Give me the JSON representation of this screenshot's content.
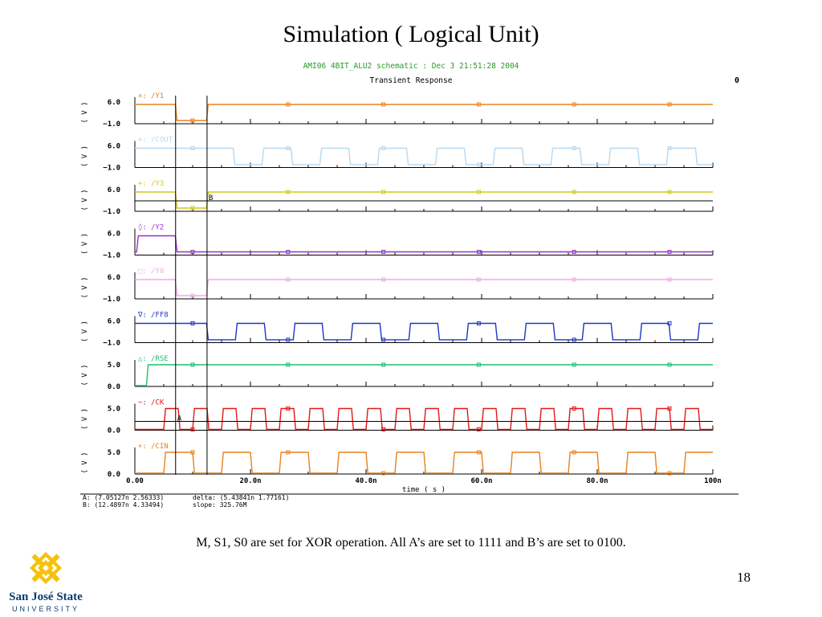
{
  "slide": {
    "title": "Simulation ( Logical Unit)",
    "caption": "M, S1, S0  are set for XOR operation. All A’s are set to 1111 and B’s are set to 0100.",
    "page_number": "18"
  },
  "logo": {
    "line1": "San José State",
    "line2": "UNIVERSITY",
    "color": "#f4c20d",
    "text_color": "#0b3a6e"
  },
  "chart_data": {
    "type": "line",
    "title": "AMI06 4BIT_ALU2 schematic : Dec  3 21:51:28 2004",
    "subtitle": "Transient Response",
    "corner_mark": "0",
    "xlabel": "time ( s )",
    "xlim": [
      0,
      100
    ],
    "x_ticks": [
      "0.00",
      "20.0n",
      "40.0n",
      "60.0n",
      "80.0n",
      "100n"
    ],
    "cursors": [
      {
        "label": "A",
        "x": 7.05
      },
      {
        "label": "B",
        "x": 12.49
      }
    ],
    "readouts": {
      "a": "A: (7.05127n 2.56333)",
      "b": "B: (12.4897n 4.33494)",
      "delta": "delta: (5.43841n 1.77161)",
      "slope": "slope: 325.76M"
    },
    "series": [
      {
        "name": "/Y1",
        "marker_char": "×",
        "color": "#e8821e",
        "unit": "( V )",
        "ymax_label": "6.0",
        "ymin_label": "−1.0",
        "kind": "pulse",
        "v0": 5.2,
        "segments": [
          [
            7.0,
            12.4,
            -0.2
          ]
        ]
      },
      {
        "name": "/COUT",
        "marker_char": "+",
        "color": "#b8d8f0",
        "unit": "( V )",
        "ymax_label": "6.0",
        "ymin_label": "−1.0",
        "kind": "clock",
        "low": -0.3,
        "high": 5.2,
        "period": 10,
        "start": 17.0,
        "duty": 0.5,
        "initial": 5.2
      },
      {
        "name": "/Y3",
        "marker_char": "+",
        "color": "#d4c81a",
        "unit": "( V )",
        "ymax_label": "6.0",
        "ymin_label": "−1.0",
        "kind": "pulse",
        "v0": 5.2,
        "segments": [
          [
            7.0,
            12.4,
            -0.2
          ]
        ]
      },
      {
        "name": "/Y2",
        "marker_char": "◊",
        "color": "#9b2fd0",
        "unit": "( V )",
        "ymax_label": "6.0",
        "ymin_label": "−1.0",
        "kind": "pulse",
        "v0": -0.2,
        "segments": [
          [
            0.3,
            7.0,
            5.2
          ]
        ]
      },
      {
        "name": "/Y0",
        "marker_char": "□",
        "color": "#f0a8e8",
        "unit": "( V )",
        "ymax_label": "6.0",
        "ymin_label": "−1.0",
        "kind": "pulse",
        "v0": 5.2,
        "segments": [
          [
            7.0,
            12.4,
            -0.2
          ]
        ]
      },
      {
        "name": "/FF8",
        "marker_char": "∇",
        "color": "#1f36c8",
        "unit": "( V )",
        "ymax_label": "6.0",
        "ymin_label": "−1.0",
        "kind": "clock",
        "low": -0.3,
        "high": 5.2,
        "period": 10,
        "start": 12.4,
        "duty": 0.5,
        "initial": 5.2
      },
      {
        "name": "/RSE",
        "marker_char": "△",
        "color": "#1fbf6f",
        "unit": "( V )",
        "ymax_label": "5.0",
        "ymin_label": "0.0",
        "kind": "pulse",
        "v0": 0.0,
        "segments": [
          [
            2.0,
            100,
            5.0
          ]
        ]
      },
      {
        "name": "/CK",
        "marker_char": "−",
        "color": "#e01818",
        "unit": "( V )",
        "ymax_label": "5.0",
        "ymin_label": "0.0",
        "kind": "clock",
        "low": 0.0,
        "high": 5.0,
        "period": 5,
        "start": 5.0,
        "duty": 0.5,
        "initial": 0.0
      },
      {
        "name": "/CIN",
        "marker_char": "∗",
        "color": "#e8821e",
        "unit": "( V )",
        "ymax_label": "5.0",
        "ymin_label": "0.0",
        "kind": "clock",
        "low": 0.0,
        "high": 5.0,
        "period": 10,
        "start": 5.0,
        "duty": 0.5,
        "initial": 0.0
      }
    ]
  }
}
